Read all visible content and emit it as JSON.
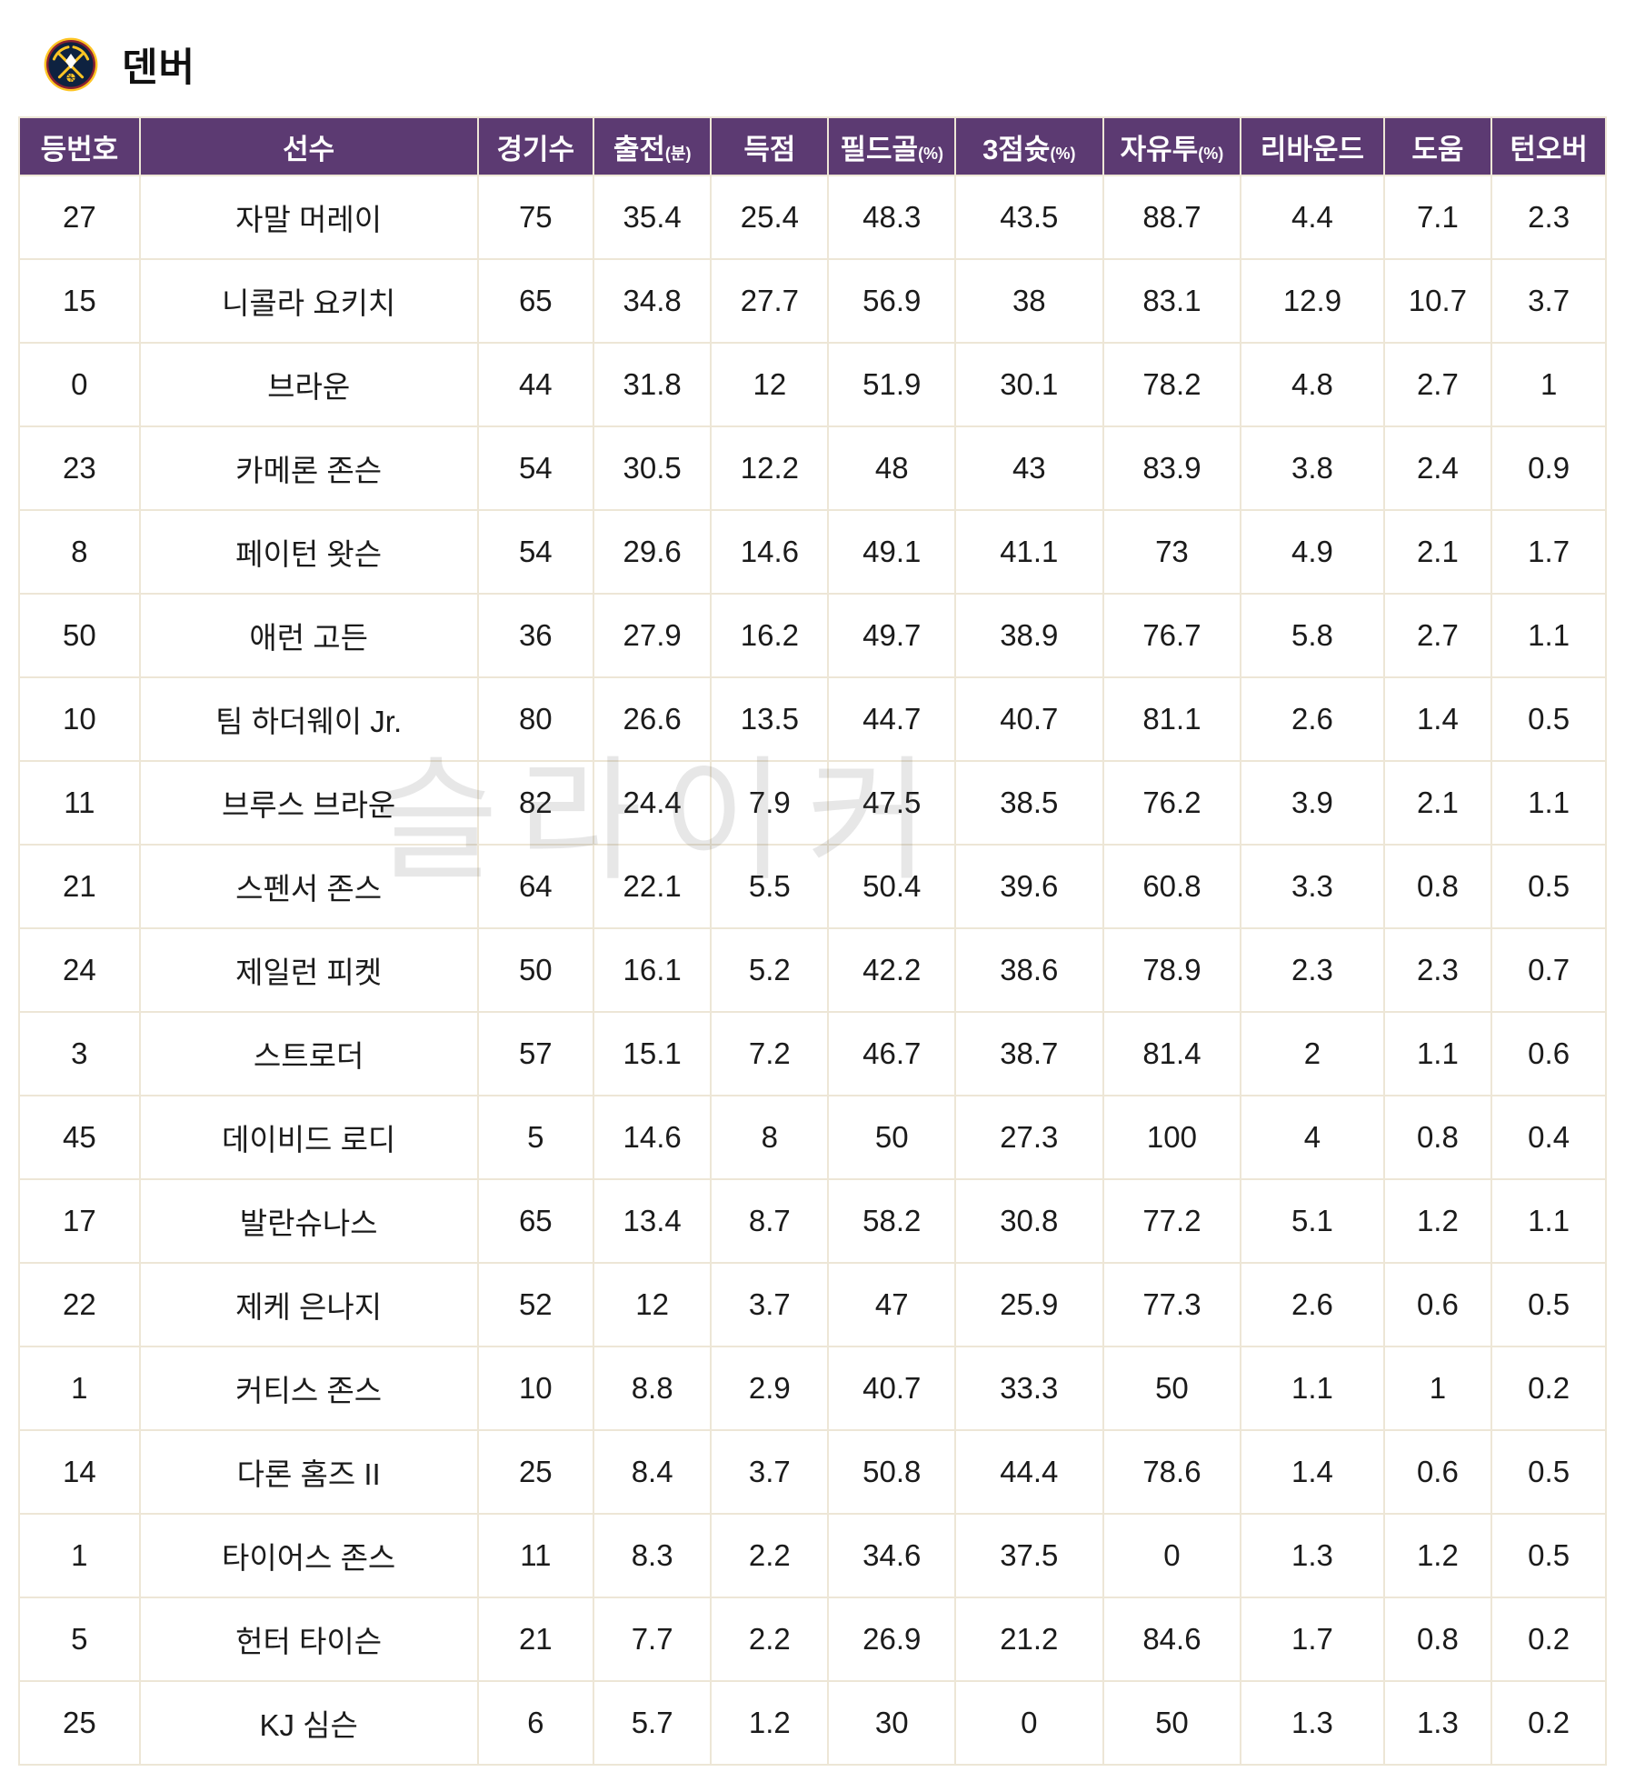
{
  "page": {
    "title": "덴버"
  },
  "icons": {
    "team_logo": "denver-nuggets-logo"
  },
  "colors": {
    "header_bg": "#5C3A72",
    "header_text": "#FFFFFF",
    "border": "#EDE6D6",
    "text": "#1B1B1B",
    "logo_navy": "#0E2240",
    "logo_gold": "#FEC524",
    "logo_maroon": "#8B2131"
  },
  "watermark": "슬라이커",
  "table": {
    "columns": [
      {
        "label": "등번호",
        "suffix": ""
      },
      {
        "label": "선수",
        "suffix": ""
      },
      {
        "label": "경기수",
        "suffix": ""
      },
      {
        "label": "출전",
        "suffix": "(분)"
      },
      {
        "label": "득점",
        "suffix": ""
      },
      {
        "label": "필드골",
        "suffix": "(%)"
      },
      {
        "label": "3점슛",
        "suffix": "(%)"
      },
      {
        "label": "자유투",
        "suffix": "(%)"
      },
      {
        "label": "리바운드",
        "suffix": ""
      },
      {
        "label": "도움",
        "suffix": ""
      },
      {
        "label": "턴오버",
        "suffix": ""
      }
    ],
    "col_widths_pct": [
      7.6,
      21.3,
      7.3,
      7.4,
      7.4,
      8.0,
      9.3,
      8.7,
      9.0,
      6.8,
      7.2
    ],
    "rows": [
      [
        "27",
        "자말 머레이",
        "75",
        "35.4",
        "25.4",
        "48.3",
        "43.5",
        "88.7",
        "4.4",
        "7.1",
        "2.3"
      ],
      [
        "15",
        "니콜라 요키치",
        "65",
        "34.8",
        "27.7",
        "56.9",
        "38",
        "83.1",
        "12.9",
        "10.7",
        "3.7"
      ],
      [
        "0",
        "브라운",
        "44",
        "31.8",
        "12",
        "51.9",
        "30.1",
        "78.2",
        "4.8",
        "2.7",
        "1"
      ],
      [
        "23",
        "카메론 존슨",
        "54",
        "30.5",
        "12.2",
        "48",
        "43",
        "83.9",
        "3.8",
        "2.4",
        "0.9"
      ],
      [
        "8",
        "페이턴 왓슨",
        "54",
        "29.6",
        "14.6",
        "49.1",
        "41.1",
        "73",
        "4.9",
        "2.1",
        "1.7"
      ],
      [
        "50",
        "애런 고든",
        "36",
        "27.9",
        "16.2",
        "49.7",
        "38.9",
        "76.7",
        "5.8",
        "2.7",
        "1.1"
      ],
      [
        "10",
        "팀 하더웨이 Jr.",
        "80",
        "26.6",
        "13.5",
        "44.7",
        "40.7",
        "81.1",
        "2.6",
        "1.4",
        "0.5"
      ],
      [
        "11",
        "브루스 브라운",
        "82",
        "24.4",
        "7.9",
        "47.5",
        "38.5",
        "76.2",
        "3.9",
        "2.1",
        "1.1"
      ],
      [
        "21",
        "스펜서 존스",
        "64",
        "22.1",
        "5.5",
        "50.4",
        "39.6",
        "60.8",
        "3.3",
        "0.8",
        "0.5"
      ],
      [
        "24",
        "제일런 피켓",
        "50",
        "16.1",
        "5.2",
        "42.2",
        "38.6",
        "78.9",
        "2.3",
        "2.3",
        "0.7"
      ],
      [
        "3",
        "스트로더",
        "57",
        "15.1",
        "7.2",
        "46.7",
        "38.7",
        "81.4",
        "2",
        "1.1",
        "0.6"
      ],
      [
        "45",
        "데이비드 로디",
        "5",
        "14.6",
        "8",
        "50",
        "27.3",
        "100",
        "4",
        "0.8",
        "0.4"
      ],
      [
        "17",
        "발란슈나스",
        "65",
        "13.4",
        "8.7",
        "58.2",
        "30.8",
        "77.2",
        "5.1",
        "1.2",
        "1.1"
      ],
      [
        "22",
        "제케 은나지",
        "52",
        "12",
        "3.7",
        "47",
        "25.9",
        "77.3",
        "2.6",
        "0.6",
        "0.5"
      ],
      [
        "1",
        "커티스 존스",
        "10",
        "8.8",
        "2.9",
        "40.7",
        "33.3",
        "50",
        "1.1",
        "1",
        "0.2"
      ],
      [
        "14",
        "다론 홈즈 II",
        "25",
        "8.4",
        "3.7",
        "50.8",
        "44.4",
        "78.6",
        "1.4",
        "0.6",
        "0.5"
      ],
      [
        "1",
        "타이어스 존스",
        "11",
        "8.3",
        "2.2",
        "34.6",
        "37.5",
        "0",
        "1.3",
        "1.2",
        "0.5"
      ],
      [
        "5",
        "헌터 타이슨",
        "21",
        "7.7",
        "2.2",
        "26.9",
        "21.2",
        "84.6",
        "1.7",
        "0.8",
        "0.2"
      ],
      [
        "25",
        "KJ 심슨",
        "6",
        "5.7",
        "1.2",
        "30",
        "0",
        "50",
        "1.3",
        "1.3",
        "0.2"
      ]
    ]
  }
}
